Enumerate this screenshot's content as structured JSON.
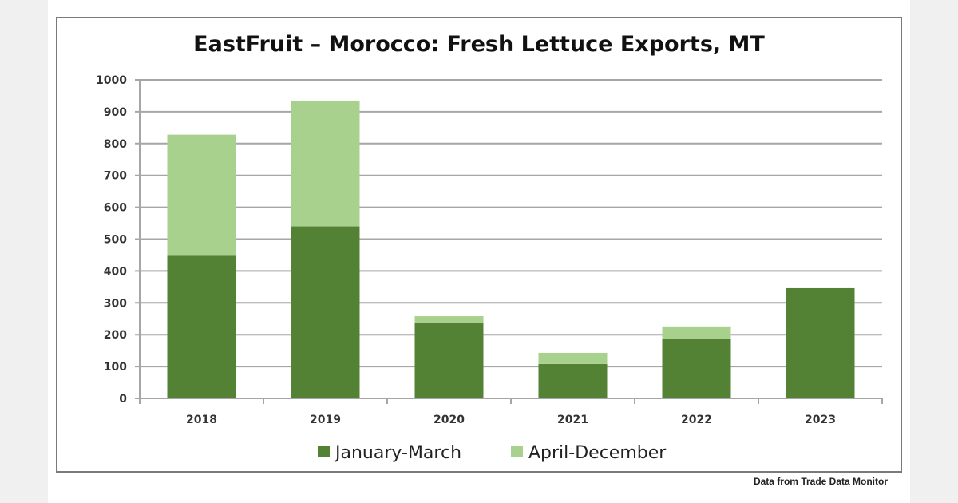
{
  "chart_data": {
    "type": "bar",
    "stacked": true,
    "title": "EastFruit – Morocco: Fresh Lettuce Exports, MT",
    "xlabel": "",
    "ylabel": "",
    "categories": [
      "2018",
      "2019",
      "2020",
      "2021",
      "2022",
      "2023"
    ],
    "series": [
      {
        "name": "January-March",
        "color": "#548235",
        "values": [
          448,
          540,
          238,
          108,
          188,
          346
        ]
      },
      {
        "name": "April-December",
        "color": "#a9d18e",
        "values": [
          380,
          395,
          20,
          35,
          38,
          0
        ]
      }
    ],
    "ylim": [
      0,
      1000
    ],
    "yticks": [
      0,
      100,
      200,
      300,
      400,
      500,
      600,
      700,
      800,
      900,
      1000
    ],
    "grid": true,
    "legend": "bottom"
  },
  "footer": "Data from Trade Data Monitor"
}
